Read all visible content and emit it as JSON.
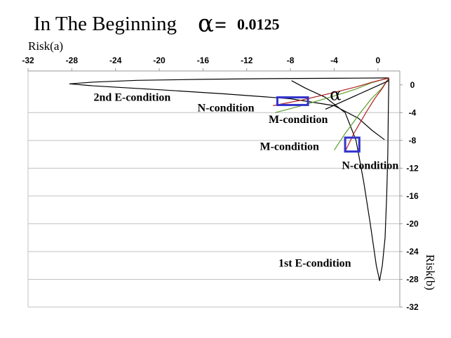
{
  "title": {
    "text": "In The Beginning",
    "alpha_symbol": "α",
    "equals": "=",
    "alpha_value": "0.0125"
  },
  "chart_data": {
    "type": "line",
    "x_axis": {
      "label": "Risk(a)",
      "range": [
        -32,
        2
      ],
      "ticks": [
        "-32",
        "-28",
        "-24",
        "-20",
        "-16",
        "-12",
        "-8",
        "-4",
        "0"
      ],
      "tick_values": [
        -32,
        -28,
        -24,
        -20,
        -16,
        -12,
        -8,
        -4,
        0
      ],
      "position": "top"
    },
    "y_axis": {
      "label": "Risk(b)",
      "range": [
        -32,
        2
      ],
      "ticks": [
        "0",
        "-4",
        "-8",
        "-12",
        "-16",
        "-20",
        "-24",
        "-28",
        "-32"
      ],
      "tick_values": [
        0,
        -4,
        -8,
        -12,
        -16,
        -20,
        -24,
        -28,
        -32
      ],
      "position": "right"
    },
    "grid": "horizontal",
    "series": [
      {
        "curve": "2nd E-condition",
        "color": "#000000",
        "points": [
          [
            1.0,
            1.0
          ],
          [
            -4,
            0.95
          ],
          [
            -10,
            0.9
          ],
          [
            -16,
            0.8
          ],
          [
            -22,
            0.65
          ],
          [
            -26,
            0.4
          ],
          [
            -28.2,
            0.15
          ],
          [
            -26,
            -0.15
          ],
          [
            -20,
            -0.7
          ],
          [
            -14,
            -1.3
          ],
          [
            -8,
            -2.0
          ],
          [
            -4,
            -3.0
          ],
          [
            -1.8,
            -4.8
          ],
          [
            -0.5,
            -6.6
          ],
          [
            0.6,
            -7.9
          ]
        ]
      },
      {
        "curve": "1st E-condition",
        "color": "#000000",
        "points": [
          [
            1.0,
            1.0
          ],
          [
            0.95,
            -4
          ],
          [
            0.9,
            -10
          ],
          [
            0.8,
            -16
          ],
          [
            0.65,
            -22
          ],
          [
            0.4,
            -26
          ],
          [
            0.15,
            -28.2
          ],
          [
            -0.15,
            -26
          ],
          [
            -0.7,
            -20
          ],
          [
            -1.3,
            -14
          ],
          [
            -2.0,
            -8
          ],
          [
            -3.0,
            -4
          ],
          [
            -4.8,
            -1.8
          ],
          [
            -6.6,
            -0.5
          ],
          [
            -7.9,
            0.6
          ]
        ]
      },
      {
        "curve": "N-condition",
        "color": "#5a9e2a",
        "points": [
          [
            -9.4,
            -4.0
          ],
          [
            -7,
            -3.0
          ],
          [
            -4,
            -1.6
          ],
          [
            -2,
            -0.6
          ],
          [
            -0.6,
            0.3
          ],
          [
            1.0,
            1.0
          ]
        ]
      },
      {
        "curve": "N-condition",
        "color": "#5a9e2a",
        "points": [
          [
            -4.0,
            -9.4
          ],
          [
            -3.0,
            -7
          ],
          [
            -1.6,
            -4
          ],
          [
            -0.6,
            -2
          ],
          [
            0.3,
            -0.6
          ],
          [
            1.0,
            1.0
          ]
        ]
      },
      {
        "curve": "M-condition",
        "color": "#b22222",
        "points": [
          [
            -9.6,
            -3.0
          ],
          [
            -7,
            -2.2
          ],
          [
            -4,
            -1.1
          ],
          [
            -2,
            -0.3
          ],
          [
            -0.5,
            0.4
          ],
          [
            1.0,
            1.0
          ]
        ]
      },
      {
        "curve": "M-condition",
        "color": "#b22222",
        "points": [
          [
            -3.0,
            -9.6
          ],
          [
            -2.2,
            -7
          ],
          [
            -1.1,
            -4
          ],
          [
            -0.3,
            -2
          ],
          [
            0.4,
            -0.5
          ],
          [
            1.0,
            1.0
          ]
        ]
      },
      {
        "curve": "alpha reference",
        "color": "#000000",
        "points": [
          [
            -4.8,
            -3.5
          ],
          [
            1.0,
            0.6
          ]
        ]
      }
    ],
    "annotations": [
      {
        "text": "2nd E-condition",
        "x": -26.0,
        "y": -2.3
      },
      {
        "text": "N-condition",
        "x": -16.5,
        "y": -3.8
      },
      {
        "text": "α",
        "x": -4.4,
        "y": -2.2,
        "symbol": true
      },
      {
        "text": "M-condition",
        "x": -10.0,
        "y": -5.5
      },
      {
        "text": "M-condition",
        "x": -10.8,
        "y": -9.4
      },
      {
        "text": "N-condition",
        "x": -3.3,
        "y": -12.1
      },
      {
        "text": "1st E-condition",
        "x": -9.1,
        "y": -26.2
      }
    ],
    "highlight_boxes": [
      {
        "x": [
          -9.2,
          -6.4
        ],
        "y": [
          -1.8,
          -2.9
        ],
        "color": "#3333cc"
      },
      {
        "x": [
          -3.0,
          -1.7
        ],
        "y": [
          -7.6,
          -9.6
        ],
        "color": "#3333cc"
      }
    ]
  }
}
